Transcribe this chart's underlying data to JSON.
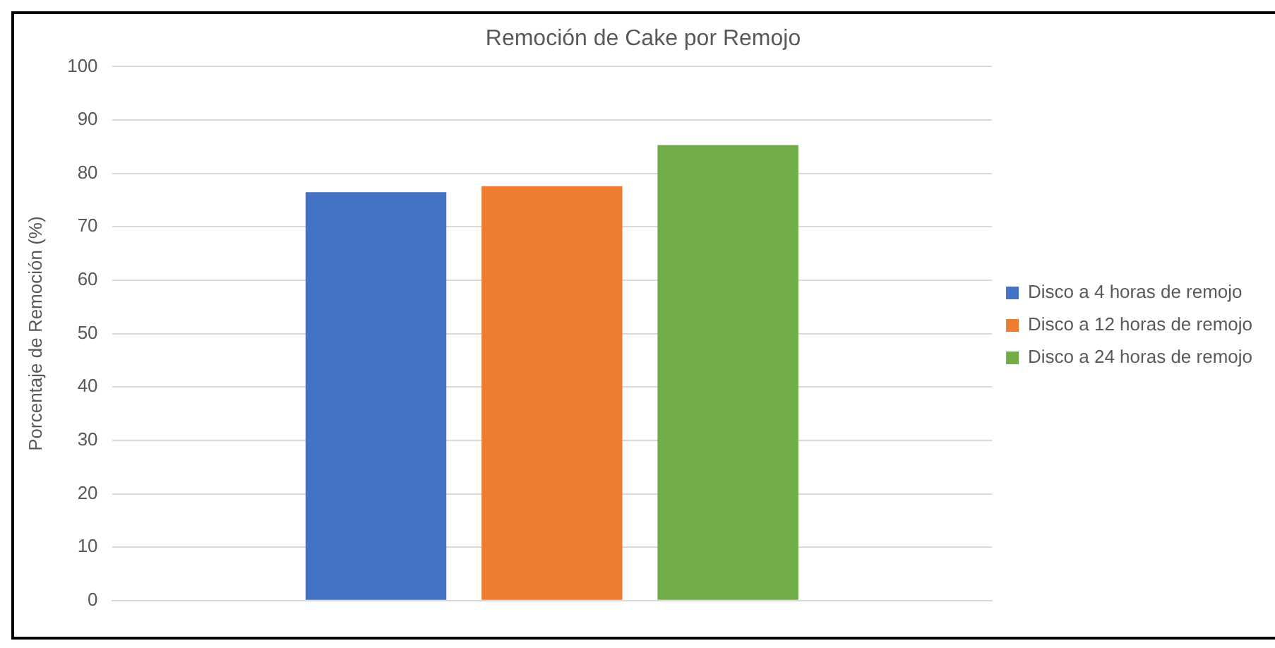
{
  "chart_data": {
    "type": "bar",
    "title": "Remoción de Cake por Remojo",
    "ylabel": "Porcentaje de Remoción (%)",
    "categories": [
      null
    ],
    "series": [
      {
        "name": "Disco a 4 horas de remojo",
        "color": "#4472c4",
        "values": [
          76.5
        ]
      },
      {
        "name": "Disco a 12 horas de remojo",
        "color": "#ed7d31",
        "values": [
          77.6
        ]
      },
      {
        "name": "Disco a 24 horas de remojo",
        "color": "#70ad47",
        "values": [
          85.3
        ]
      }
    ],
    "ylim": [
      0,
      100
    ],
    "yticks": [
      0,
      10,
      20,
      30,
      40,
      50,
      60,
      70,
      80,
      90,
      100
    ],
    "grid": "y",
    "legend": "right"
  }
}
